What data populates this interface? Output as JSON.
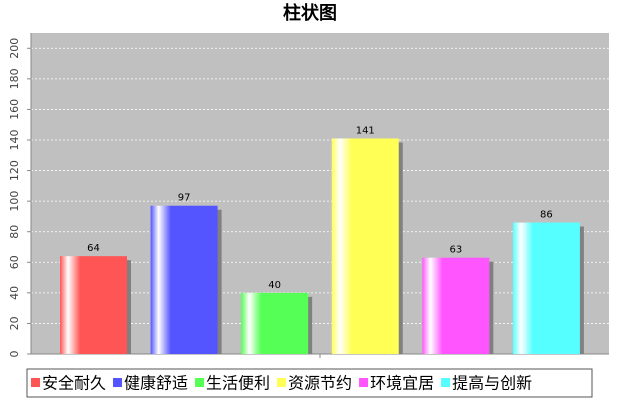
{
  "chart_data": {
    "type": "bar",
    "title": "柱状图",
    "categories": [
      null
    ],
    "series": [
      {
        "name": "安全耐久",
        "color": "#ff5555",
        "values": [
          64
        ]
      },
      {
        "name": "健康舒适",
        "color": "#5555ff",
        "values": [
          97
        ]
      },
      {
        "name": "生活便利",
        "color": "#55ff55",
        "values": [
          40
        ]
      },
      {
        "name": "资源节约",
        "color": "#ffff55",
        "values": [
          141
        ]
      },
      {
        "name": "环境宜居",
        "color": "#ff55ff",
        "values": [
          63
        ]
      },
      {
        "name": "提高与创新",
        "color": "#55ffff",
        "values": [
          86
        ]
      }
    ],
    "ylim": [
      0,
      210
    ],
    "yticks": [
      0,
      20,
      40,
      60,
      80,
      100,
      120,
      140,
      160,
      180,
      200
    ],
    "grid": true
  }
}
